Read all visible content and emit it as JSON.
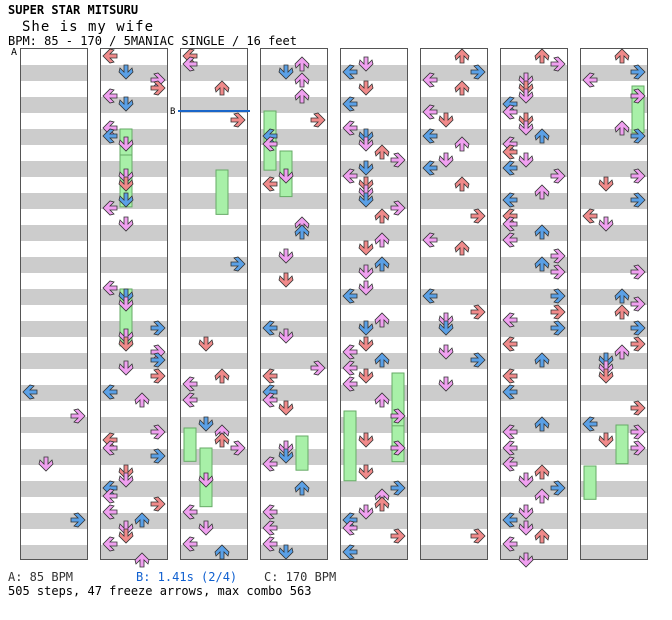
{
  "header": {
    "title": "SUPER STAR MITSURU",
    "subtitle": "She is my wife",
    "bpm_line": "BPM: 85 - 170 / 5MANIAC SINGLE / 16 feet"
  },
  "markers": {
    "a": "A",
    "b_icon": "B"
  },
  "footer": {
    "bpm_a": "A: 85 BPM",
    "bpm_b": "B: 1.41s (2/4)",
    "bpm_c": "C: 170 BPM",
    "stats": "505 steps, 47 freeze arrows, max combo 563"
  },
  "colors": {
    "red": "#f08a8a",
    "blue": "#5aa0e6",
    "pink": "#f0a0f0",
    "green": "#a8f0a8",
    "bright_green": "#30e030",
    "yellow": "#f0f000",
    "stripe": "#cccccc",
    "bpm_marker": "#1a66c9"
  },
  "chart_data": {
    "type": "step-chart",
    "columns": 8,
    "measures_per_column": 8,
    "lanes": [
      "left",
      "down",
      "up",
      "right"
    ],
    "total_steps": 505,
    "freeze_arrows": 47,
    "max_combo": 563
  }
}
